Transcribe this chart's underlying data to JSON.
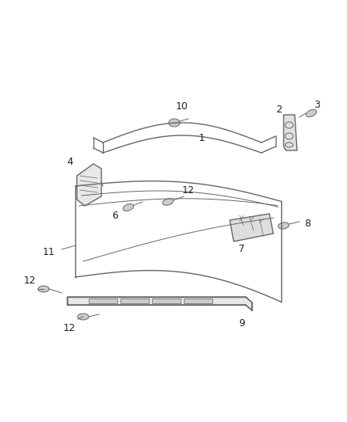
{
  "background_color": "#ffffff",
  "line_color": "#666666",
  "label_color": "#222222",
  "fig_width": 4.38,
  "fig_height": 5.33,
  "dpi": 100
}
